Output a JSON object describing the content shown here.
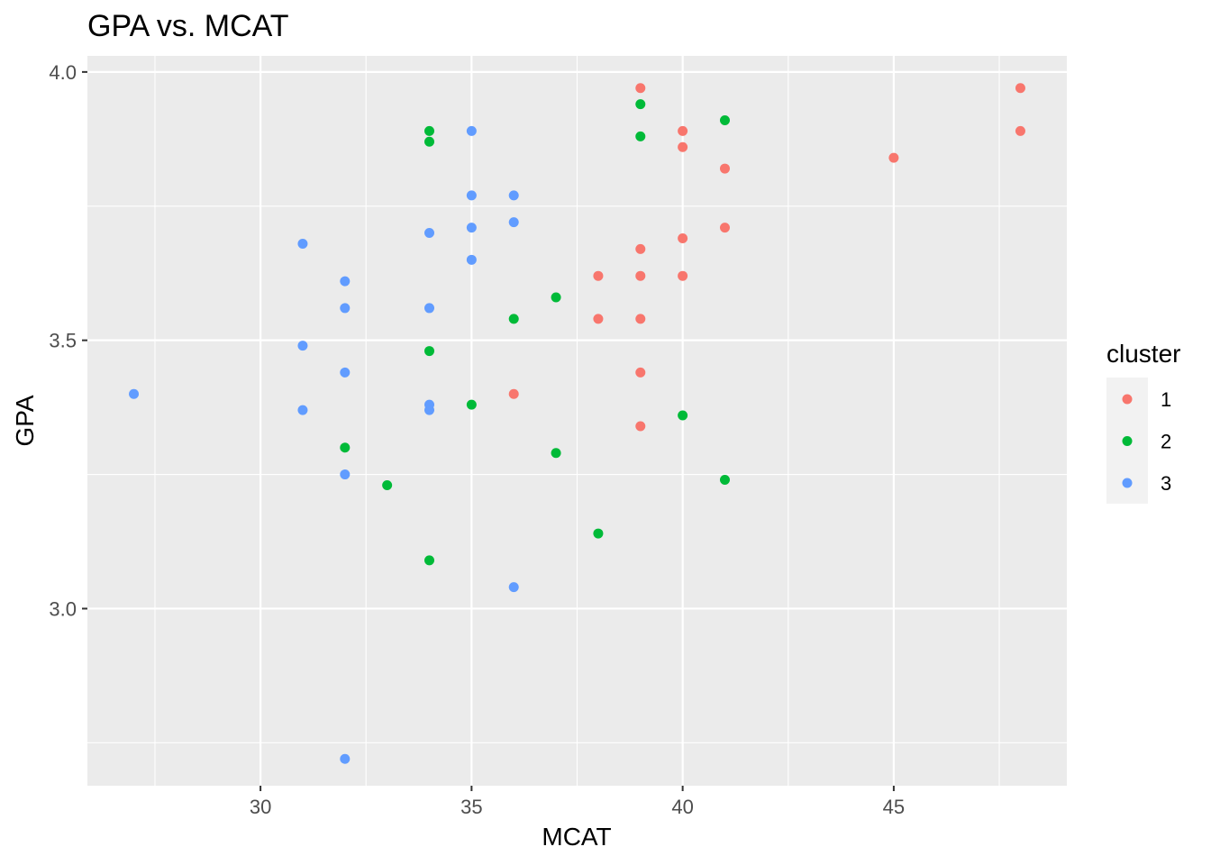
{
  "chart_data": {
    "type": "scatter",
    "title": "GPA vs. MCAT",
    "xlabel": "MCAT",
    "ylabel": "GPA",
    "xlim": [
      25.9,
      49.1
    ],
    "ylim": [
      2.67,
      4.03
    ],
    "x_ticks": [
      30,
      35,
      40,
      45
    ],
    "x_tick_labels": [
      "30",
      "35",
      "40",
      "45"
    ],
    "x_minor_ticks": [
      27.5,
      32.5,
      37.5,
      42.5,
      47.5
    ],
    "y_ticks": [
      3.0,
      3.5,
      4.0
    ],
    "y_tick_labels": [
      "3.0",
      "3.5",
      "4.0"
    ],
    "y_minor_ticks": [
      2.75,
      3.25,
      3.75
    ],
    "grid": true,
    "panel_background": "#ebebeb",
    "legend": {
      "title": "cluster",
      "position": "right"
    },
    "series": [
      {
        "name": "1",
        "color": "#f8766d",
        "points": [
          {
            "x": 39,
            "y": 3.97
          },
          {
            "x": 48,
            "y": 3.97
          },
          {
            "x": 40,
            "y": 3.89
          },
          {
            "x": 48,
            "y": 3.89
          },
          {
            "x": 40,
            "y": 3.86
          },
          {
            "x": 45,
            "y": 3.84
          },
          {
            "x": 41,
            "y": 3.82
          },
          {
            "x": 41,
            "y": 3.71
          },
          {
            "x": 40,
            "y": 3.69
          },
          {
            "x": 39,
            "y": 3.67
          },
          {
            "x": 38,
            "y": 3.62
          },
          {
            "x": 39,
            "y": 3.62
          },
          {
            "x": 40,
            "y": 3.62
          },
          {
            "x": 38,
            "y": 3.54
          },
          {
            "x": 39,
            "y": 3.54
          },
          {
            "x": 39,
            "y": 3.44
          },
          {
            "x": 36,
            "y": 3.4
          },
          {
            "x": 39,
            "y": 3.34
          }
        ]
      },
      {
        "name": "2",
        "color": "#00ba38",
        "points": [
          {
            "x": 39,
            "y": 3.94
          },
          {
            "x": 41,
            "y": 3.91
          },
          {
            "x": 34,
            "y": 3.89
          },
          {
            "x": 39,
            "y": 3.88
          },
          {
            "x": 34,
            "y": 3.87
          },
          {
            "x": 37,
            "y": 3.58
          },
          {
            "x": 36,
            "y": 3.54
          },
          {
            "x": 34,
            "y": 3.48
          },
          {
            "x": 35,
            "y": 3.38
          },
          {
            "x": 40,
            "y": 3.36
          },
          {
            "x": 32,
            "y": 3.3
          },
          {
            "x": 37,
            "y": 3.29
          },
          {
            "x": 41,
            "y": 3.24
          },
          {
            "x": 33,
            "y": 3.23
          },
          {
            "x": 38,
            "y": 3.14
          },
          {
            "x": 34,
            "y": 3.09
          }
        ]
      },
      {
        "name": "3",
        "color": "#619cff",
        "points": [
          {
            "x": 35,
            "y": 3.89
          },
          {
            "x": 35,
            "y": 3.77
          },
          {
            "x": 36,
            "y": 3.77
          },
          {
            "x": 36,
            "y": 3.72
          },
          {
            "x": 35,
            "y": 3.71
          },
          {
            "x": 34,
            "y": 3.7
          },
          {
            "x": 31,
            "y": 3.68
          },
          {
            "x": 35,
            "y": 3.65
          },
          {
            "x": 32,
            "y": 3.61
          },
          {
            "x": 32,
            "y": 3.56
          },
          {
            "x": 34,
            "y": 3.56
          },
          {
            "x": 31,
            "y": 3.49
          },
          {
            "x": 32,
            "y": 3.44
          },
          {
            "x": 27,
            "y": 3.4
          },
          {
            "x": 34,
            "y": 3.38
          },
          {
            "x": 34,
            "y": 3.37
          },
          {
            "x": 31,
            "y": 3.37
          },
          {
            "x": 32,
            "y": 3.25
          },
          {
            "x": 36,
            "y": 3.04
          },
          {
            "x": 32,
            "y": 2.72
          }
        ]
      }
    ]
  }
}
